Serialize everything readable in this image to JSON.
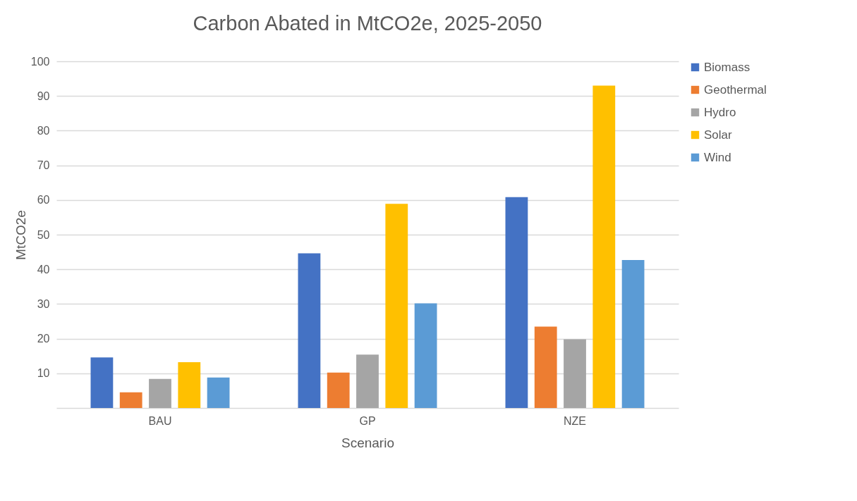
{
  "chart_data": {
    "type": "bar",
    "title": "Carbon Abated in MtCO2e, 2025-2050",
    "xlabel": "Scenario",
    "ylabel": "MtCO2e",
    "categories": [
      "BAU",
      "GP",
      "NZE"
    ],
    "series": [
      {
        "name": "Biomass",
        "color": "#4472c4",
        "values": [
          14.6,
          44.6,
          60.8
        ]
      },
      {
        "name": "Geothermal",
        "color": "#ed7d31",
        "values": [
          4.5,
          10.2,
          23.5
        ]
      },
      {
        "name": "Hydro",
        "color": "#a5a5a5",
        "values": [
          8.4,
          15.4,
          19.8
        ]
      },
      {
        "name": "Solar",
        "color": "#ffc000",
        "values": [
          13.2,
          58.9,
          93.0
        ]
      },
      {
        "name": "Wind",
        "color": "#5b9bd5",
        "values": [
          8.8,
          30.2,
          42.7
        ]
      }
    ],
    "ylim": [
      0,
      100
    ],
    "yticks": [
      10,
      20,
      30,
      40,
      50,
      60,
      70,
      80,
      90,
      100
    ],
    "grid": "y",
    "legend": "right"
  }
}
